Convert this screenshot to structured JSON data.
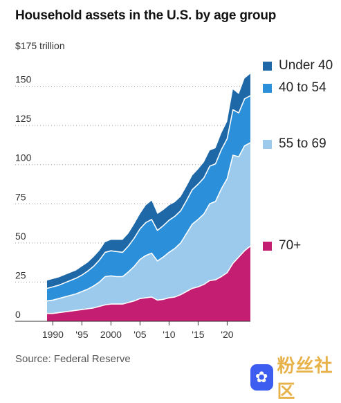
{
  "title": "Household assets in the U.S. by age group",
  "unit_label": "$175 trillion",
  "source": "Source: Federal Reserve",
  "watermark": {
    "glyph": "✿",
    "text": "粉丝社区"
  },
  "chart_data": {
    "type": "area",
    "stacked": true,
    "ylim": [
      0,
      175
    ],
    "xlim": [
      1989,
      2024
    ],
    "y_ticks": [
      0,
      25,
      50,
      75,
      100,
      125,
      150
    ],
    "x_ticks": [
      1990,
      1995,
      2000,
      2005,
      2010,
      2015,
      2020
    ],
    "x_tick_labels": [
      "1990",
      "'95",
      "2000",
      "'05",
      "'10",
      "'15",
      "'20"
    ],
    "grid": true,
    "legend_placement": "right",
    "x": [
      1989,
      1990,
      1991,
      1992,
      1993,
      1994,
      1995,
      1996,
      1997,
      1998,
      1999,
      2000,
      2001,
      2002,
      2003,
      2004,
      2005,
      2006,
      2007,
      2008,
      2009,
      2010,
      2011,
      2012,
      2013,
      2014,
      2015,
      2016,
      2017,
      2018,
      2019,
      2020,
      2021,
      2022,
      2023,
      2024
    ],
    "series": [
      {
        "name": "70+",
        "color": "#c41e72",
        "values": [
          5,
          5,
          5.5,
          6,
          6.5,
          7,
          7.5,
          8,
          8.5,
          9.5,
          10.5,
          11,
          11,
          11,
          12,
          13,
          14.5,
          15,
          15.5,
          13.5,
          14,
          15,
          15.5,
          17,
          19,
          21,
          22,
          23.5,
          26,
          26.5,
          28.5,
          31,
          37,
          41,
          45,
          48
        ]
      },
      {
        "name": "55 to 69",
        "color": "#9ccaed",
        "values": [
          8,
          8.5,
          9,
          9.5,
          10,
          10.5,
          11.5,
          12.5,
          14,
          15.5,
          18,
          18,
          17.5,
          17.5,
          19.5,
          22,
          25,
          27,
          28,
          25,
          27,
          29,
          31,
          33,
          37,
          41,
          43,
          45,
          49,
          50,
          56,
          60,
          69,
          64,
          67,
          66
        ]
      },
      {
        "name": "40 to 54",
        "color": "#2b90d9",
        "values": [
          8,
          8.5,
          8.5,
          9,
          9.5,
          10,
          10.5,
          11.5,
          12.5,
          14,
          15.5,
          16,
          16,
          15.5,
          16.5,
          18,
          19.5,
          21,
          21.5,
          19.5,
          20,
          20.5,
          20.5,
          20.5,
          21,
          22,
          22.5,
          23,
          24,
          24,
          25,
          25.5,
          29,
          28,
          30,
          30
        ]
      },
      {
        "name": "Under 40",
        "color": "#1f68a8",
        "values": [
          5,
          5,
          5,
          5,
          5,
          5,
          5.5,
          5.5,
          6,
          6,
          6.5,
          7,
          7.5,
          8,
          8,
          9,
          9.5,
          11,
          12,
          10.5,
          10,
          9.5,
          9,
          9,
          9,
          9,
          9.5,
          10,
          10,
          10,
          10.5,
          11,
          13,
          12,
          13,
          14
        ]
      }
    ]
  }
}
